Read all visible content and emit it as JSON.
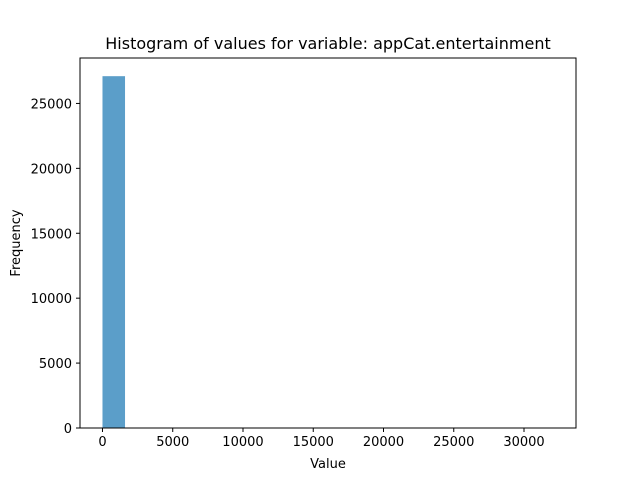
{
  "chart_data": {
    "type": "bar",
    "title": "Histogram of values for variable: appCat.entertainment",
    "xlabel": "Value",
    "ylabel": "Frequency",
    "xlim": [
      -1600,
      33700
    ],
    "ylim": [
      0,
      28500
    ],
    "xticks": [
      0,
      5000,
      10000,
      15000,
      20000,
      25000,
      30000
    ],
    "yticks": [
      0,
      5000,
      10000,
      15000,
      20000,
      25000
    ],
    "bins": [
      {
        "x0": 0,
        "x1": 1605,
        "count": 27100
      },
      {
        "x0": 1605,
        "x1": 3210,
        "count": 12
      },
      {
        "x0": 3210,
        "x1": 4815,
        "count": 3
      },
      {
        "x0": 4815,
        "x1": 6420,
        "count": 1
      },
      {
        "x0": 30495,
        "x1": 32100,
        "count": 1
      }
    ],
    "bar_color": "#5b9ec9",
    "grid": false,
    "legend": "none"
  }
}
